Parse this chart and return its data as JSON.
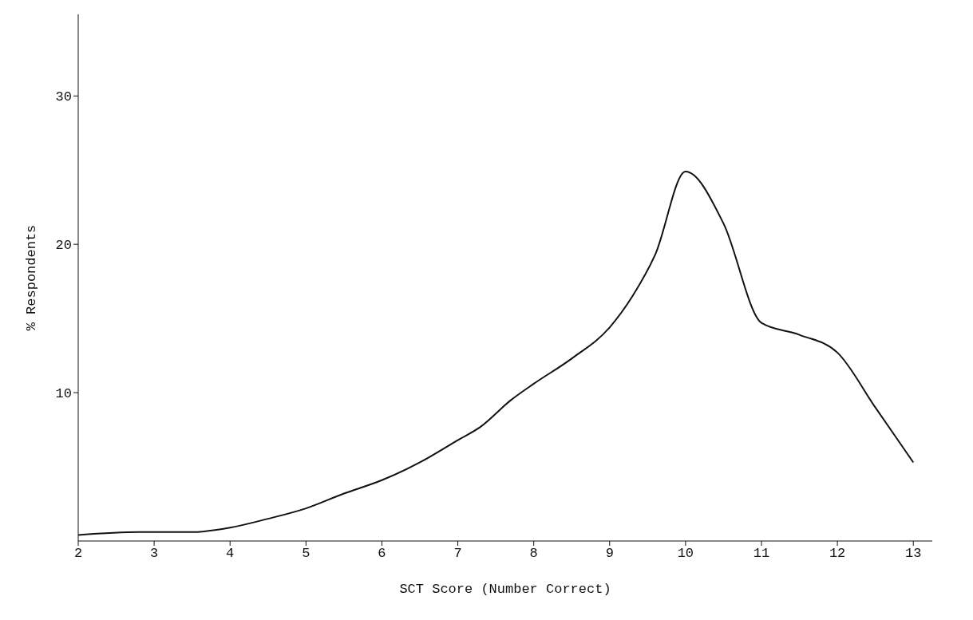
{
  "chart_data": {
    "type": "line",
    "xlabel": "SCT Score (Number Correct)",
    "ylabel": "% Respondents",
    "x": [
      2,
      2.8,
      3.5,
      4,
      4.5,
      5,
      5.5,
      6,
      6.5,
      7,
      7.3,
      7.7,
      8,
      8.5,
      9,
      9.3,
      9.6,
      10,
      10.5,
      11,
      11.5,
      12,
      12.5,
      13
    ],
    "series": [
      {
        "color": "#111111",
        "values": [
          0.4,
          0.6,
          0.6,
          0.9,
          1.5,
          2.2,
          3.2,
          4.1,
          5.3,
          6.8,
          7.7,
          9.5,
          10.6,
          12.3,
          14.4,
          16.5,
          19.3,
          24.9,
          21.4,
          14.7,
          13.9,
          12.7,
          9,
          5.3
        ]
      }
    ],
    "xlim": [
      2,
      13.25
    ],
    "xticks": [
      2,
      3,
      4,
      5,
      6,
      7,
      8,
      9,
      10,
      11,
      12,
      13
    ],
    "ylim": [
      0,
      35.5
    ],
    "yticks": [
      10,
      20,
      30
    ],
    "grid": false,
    "legend": false,
    "marker": "none",
    "line_style": "solid"
  }
}
